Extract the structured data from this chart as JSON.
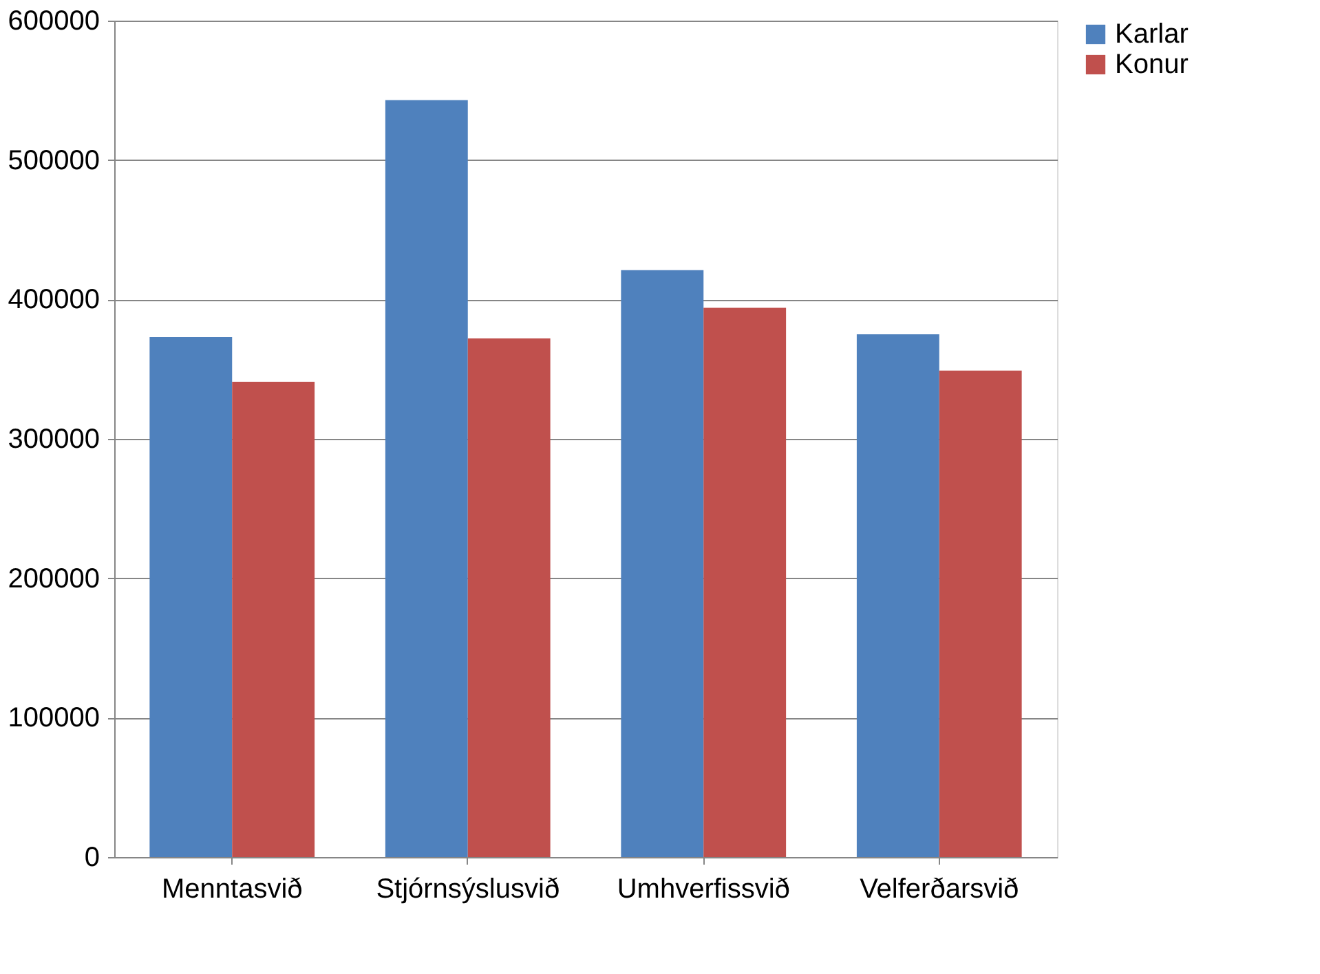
{
  "chart_data": {
    "type": "bar",
    "categories": [
      "Menntasvið",
      "Stjórnsýslusvið",
      "Umhverfissvið",
      "Velferðarsvið"
    ],
    "series": [
      {
        "name": "Karlar",
        "color": "#4f81bd",
        "values": [
          373000,
          543000,
          421000,
          375000
        ]
      },
      {
        "name": "Konur",
        "color": "#c0504d",
        "values": [
          341000,
          372000,
          394000,
          349000
        ]
      }
    ],
    "ylim": [
      0,
      600000
    ],
    "yticks": [
      0,
      100000,
      200000,
      300000,
      400000,
      500000,
      600000
    ],
    "grid": "y",
    "legend": "right"
  }
}
